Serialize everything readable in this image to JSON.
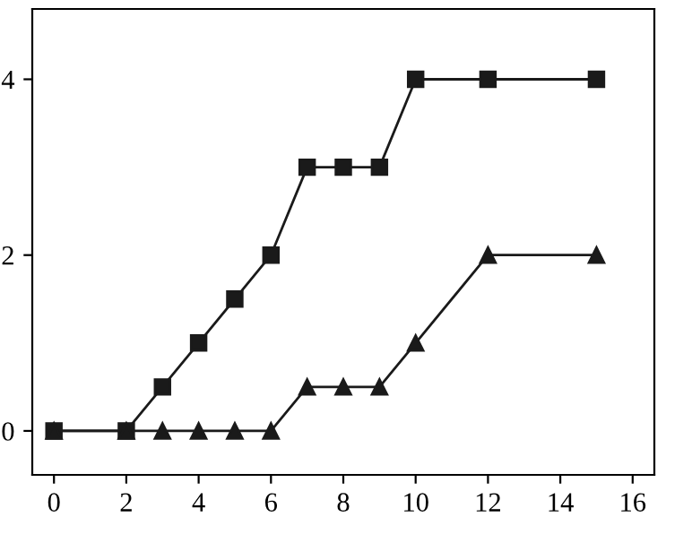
{
  "chart_data": {
    "type": "line",
    "x": [
      0,
      2,
      3,
      4,
      5,
      6,
      7,
      8,
      9,
      10,
      12,
      15
    ],
    "series": [
      {
        "color": "#1a1a1a",
        "marker": "square",
        "values": [
          0,
          0,
          0.5,
          1,
          1.5,
          2,
          3,
          3,
          3,
          4,
          4,
          4
        ]
      },
      {
        "color": "#1a1a1a",
        "marker": "triangle",
        "values": [
          0,
          0,
          0,
          0,
          0,
          0,
          0.5,
          0.5,
          0.5,
          1,
          2,
          2
        ]
      }
    ],
    "xlim": [
      -0.6,
      16.6
    ],
    "xticks": [
      0,
      2,
      4,
      6,
      8,
      10,
      12,
      14,
      16
    ],
    "ylim": [
      -0.5,
      4.8
    ],
    "yticks": [
      0,
      2,
      4
    ],
    "grid": false,
    "legend": false,
    "line_style": "solid"
  }
}
